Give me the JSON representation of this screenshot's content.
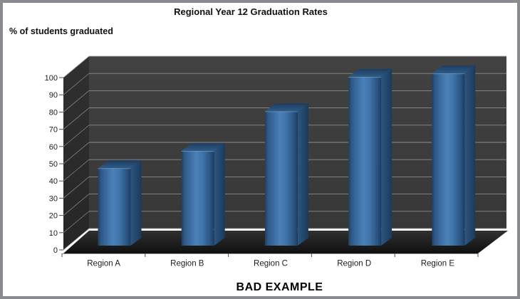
{
  "caption": "BAD EXAMPLE",
  "chart_data": {
    "type": "bar",
    "style": "3d-column",
    "title": "Regional Year 12 Graduation Rates",
    "ylabel": "% of students graduated",
    "xlabel": "",
    "categories": [
      "Region A",
      "Region B",
      "Region C",
      "Region D",
      "Region E"
    ],
    "values": [
      45,
      55,
      78,
      98,
      100
    ],
    "ylim": [
      0,
      100
    ],
    "yticks": [
      0,
      10,
      20,
      30,
      40,
      50,
      60,
      70,
      80,
      90,
      100
    ],
    "grid": "horizontal-on-dark-walls",
    "legend": "none",
    "colors": {
      "bar_front": "#4a80b6",
      "bar_front_edge": "#203f61",
      "bar_top": "#2f5a86",
      "bar_side": "#1c3a5a",
      "wall_back": "#3d3d3d",
      "wall_left": "#2a2a2a",
      "floor": "#1a1a1a",
      "gridline": "#9a9a9a",
      "axis_line": "#9a9a9a",
      "tick_mark": "#4d4d4d",
      "axis_text": "#1c1c1c",
      "frame_border": "#888b90",
      "background": "#ffffff"
    }
  }
}
